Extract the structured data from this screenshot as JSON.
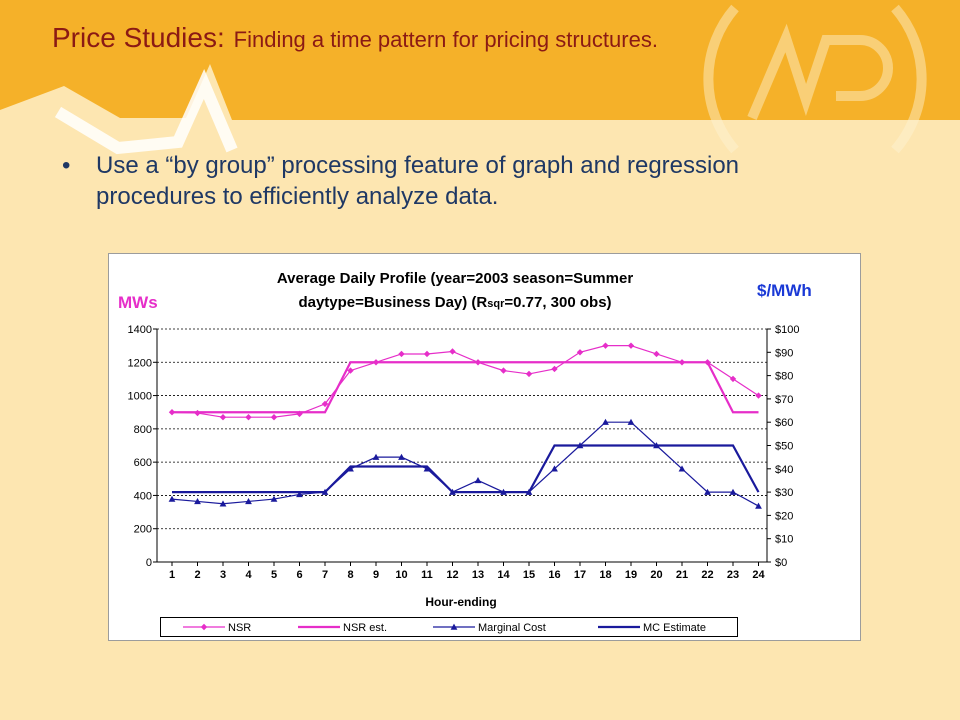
{
  "slide": {
    "title_main": "Price Studies:",
    "title_sub": "Finding a time pattern for pricing structures.",
    "bullets": [
      "Use a “by group” processing feature of graph and regression procedures to efficiently analyze data."
    ]
  },
  "colors": {
    "background": "#FDE6B1",
    "banner": "#F5B129",
    "title_text": "#8B1A14",
    "bullet_text": "#1F3864",
    "nsr": "#E62EC9",
    "mc": "#1A1A9C",
    "left_axis_label": "#E62EC9",
    "right_axis_label": "#1A39D6"
  },
  "chart_data": {
    "type": "line",
    "title_line1": "Average Daily Profile (year=2003 season=Summer",
    "title_line2_a": "daytype=Business Day) (R",
    "title_line2_sub": "sqr",
    "title_line2_b": "=0.77, 300 obs)",
    "xlabel": "Hour-ending",
    "ylabel_left": "MWs",
    "ylabel_right": "$/MWh",
    "x": [
      1,
      2,
      3,
      4,
      5,
      6,
      7,
      8,
      9,
      10,
      11,
      12,
      13,
      14,
      15,
      16,
      17,
      18,
      19,
      20,
      21,
      22,
      23,
      24
    ],
    "ylim_left": [
      0,
      1400
    ],
    "yticks_left": [
      0,
      200,
      400,
      600,
      800,
      1000,
      1200,
      1400
    ],
    "ylim_right": [
      0,
      100
    ],
    "yticks_right": [
      "$0",
      "$10",
      "$20",
      "$30",
      "$40",
      "$50",
      "$60",
      "$70",
      "$80",
      "$90",
      "$100"
    ],
    "grid": "horizontal dashed",
    "legend_position": "bottom",
    "series": [
      {
        "name": "NSR",
        "axis": "left",
        "marker": "diamond",
        "color": "#E62EC9",
        "values": [
          900,
          895,
          870,
          870,
          870,
          890,
          950,
          1150,
          1200,
          1250,
          1250,
          1265,
          1200,
          1150,
          1130,
          1160,
          1260,
          1300,
          1300,
          1250,
          1200,
          1200,
          1100,
          1000
        ]
      },
      {
        "name": "NSR est.",
        "axis": "left",
        "marker": "none",
        "color": "#E62EC9",
        "values": [
          900,
          900,
          900,
          900,
          900,
          900,
          900,
          1200,
          1200,
          1200,
          1200,
          1200,
          1200,
          1200,
          1200,
          1200,
          1200,
          1200,
          1200,
          1200,
          1200,
          1200,
          900,
          900
        ]
      },
      {
        "name": "Marginal Cost",
        "axis": "right",
        "marker": "triangle",
        "color": "#1A1A9C",
        "values": [
          27,
          26,
          25,
          26,
          27,
          29,
          30,
          40,
          45,
          45,
          40,
          30,
          35,
          30,
          30,
          40,
          50,
          60,
          60,
          50,
          40,
          30,
          30,
          24
        ]
      },
      {
        "name": "MC Estimate",
        "axis": "right",
        "marker": "none",
        "color": "#1A1A9C",
        "values": [
          30,
          30,
          30,
          30,
          30,
          30,
          30,
          41,
          41,
          41,
          41,
          30,
          30,
          30,
          30,
          50,
          50,
          50,
          50,
          50,
          50,
          50,
          50,
          30
        ]
      }
    ]
  }
}
